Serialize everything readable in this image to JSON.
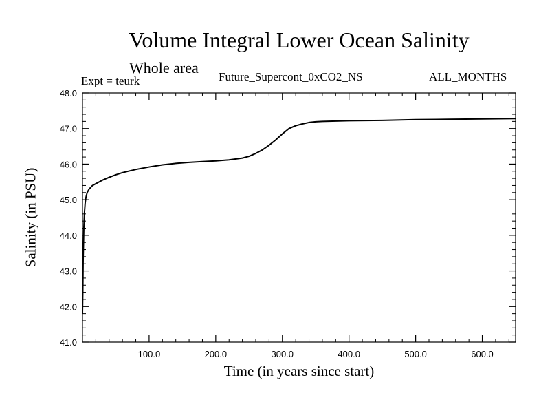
{
  "chart_data": {
    "type": "line",
    "title": "Volume Integral Lower Ocean Salinity",
    "subtitle": "Whole area",
    "annotations": {
      "left": "Expt = teurk",
      "center": "Future_Supercont_0xCO2_NS",
      "right": "ALL_MONTHS"
    },
    "xlabel": "Time (in years since start)",
    "ylabel": "Salinity (in PSU)",
    "xlim": [
      0,
      650
    ],
    "ylim": [
      41.0,
      48.0
    ],
    "x_ticks": [
      100,
      200,
      300,
      400,
      500,
      600
    ],
    "x_tick_labels": [
      "100.0",
      "200.0",
      "300.0",
      "400.0",
      "500.0",
      "600.0"
    ],
    "y_ticks": [
      41,
      42,
      43,
      44,
      45,
      46,
      47,
      48
    ],
    "y_tick_labels": [
      "41.0",
      "42.0",
      "43.0",
      "44.0",
      "45.0",
      "46.0",
      "47.0",
      "48.0"
    ],
    "grid": false,
    "series": [
      {
        "color": "#000000",
        "x": [
          0,
          0.5,
          1,
          2,
          3,
          4,
          5,
          7,
          10,
          15,
          20,
          30,
          40,
          50,
          60,
          80,
          100,
          120,
          140,
          160,
          180,
          200,
          220,
          240,
          250,
          260,
          270,
          280,
          290,
          300,
          310,
          320,
          330,
          340,
          350,
          360,
          380,
          400,
          450,
          500,
          550,
          600,
          650
        ],
        "y": [
          41.8,
          42.4,
          43.3,
          44.2,
          44.65,
          44.9,
          45.05,
          45.2,
          45.3,
          45.4,
          45.45,
          45.55,
          45.63,
          45.7,
          45.76,
          45.85,
          45.92,
          45.98,
          46.02,
          46.05,
          46.07,
          46.09,
          46.12,
          46.17,
          46.22,
          46.3,
          46.4,
          46.53,
          46.68,
          46.85,
          47.0,
          47.08,
          47.13,
          47.17,
          47.19,
          47.2,
          47.21,
          47.22,
          47.23,
          47.25,
          47.26,
          47.27,
          47.28
        ]
      }
    ]
  }
}
